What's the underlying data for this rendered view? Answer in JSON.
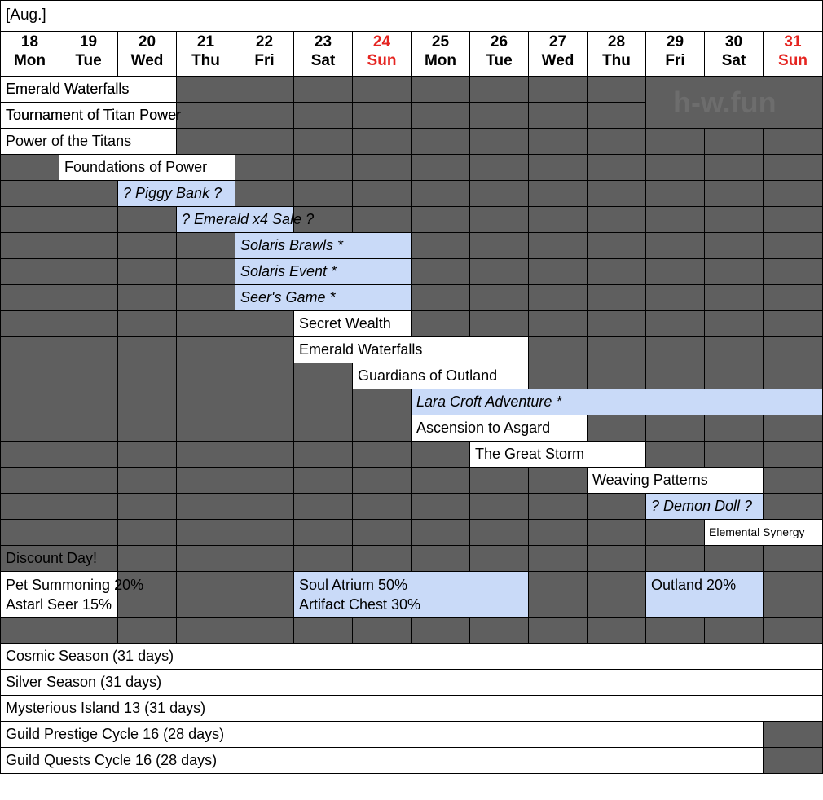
{
  "month_label": "[Aug.]",
  "watermark": "h-w.fun",
  "colors": {
    "off": "#5f5f5f",
    "grid": "#000000",
    "event": "#ffffff",
    "tentative": "#c9daf8",
    "sunday": "#e52521"
  },
  "days": [
    {
      "num": "18",
      "dow": "Mon",
      "sunday": false
    },
    {
      "num": "19",
      "dow": "Tue",
      "sunday": false
    },
    {
      "num": "20",
      "dow": "Wed",
      "sunday": false
    },
    {
      "num": "21",
      "dow": "Thu",
      "sunday": false
    },
    {
      "num": "22",
      "dow": "Fri",
      "sunday": false
    },
    {
      "num": "23",
      "dow": "Sat",
      "sunday": false
    },
    {
      "num": "24",
      "dow": "Sun",
      "sunday": true
    },
    {
      "num": "25",
      "dow": "Mon",
      "sunday": false
    },
    {
      "num": "26",
      "dow": "Tue",
      "sunday": false
    },
    {
      "num": "27",
      "dow": "Wed",
      "sunday": false
    },
    {
      "num": "28",
      "dow": "Thu",
      "sunday": false
    },
    {
      "num": "29",
      "dow": "Fri",
      "sunday": false
    },
    {
      "num": "30",
      "dow": "Sat",
      "sunday": false
    },
    {
      "num": "31",
      "dow": "Sun",
      "sunday": true
    }
  ],
  "events": [
    {
      "label": "Emerald Waterfalls",
      "row": 0,
      "start": 0,
      "end": 2,
      "style": "white"
    },
    {
      "label": "Tournament of Titan Power",
      "row": 1,
      "start": 0,
      "end": 2,
      "style": "white"
    },
    {
      "label": "Power of the Titans",
      "row": 2,
      "start": 0,
      "end": 2,
      "style": "white"
    },
    {
      "label": "Foundations of Power",
      "row": 3,
      "start": 1,
      "end": 3,
      "style": "white"
    },
    {
      "label": "? Piggy Bank ?",
      "row": 4,
      "start": 2,
      "end": 3,
      "style": "blue",
      "italic": true
    },
    {
      "label": "? Emerald x4 Sale ?",
      "row": 5,
      "start": 3,
      "end": 4,
      "style": "blue",
      "italic": true
    },
    {
      "label": "Solaris Brawls *",
      "row": 6,
      "start": 4,
      "end": 6,
      "style": "blue",
      "italic": true
    },
    {
      "label": "Solaris Event *",
      "row": 7,
      "start": 4,
      "end": 6,
      "style": "blue",
      "italic": true
    },
    {
      "label": "Seer's Game *",
      "row": 8,
      "start": 4,
      "end": 6,
      "style": "blue",
      "italic": true
    },
    {
      "label": "Secret Wealth",
      "row": 9,
      "start": 5,
      "end": 6,
      "style": "white"
    },
    {
      "label": "Emerald Waterfalls",
      "row": 10,
      "start": 5,
      "end": 8,
      "style": "white"
    },
    {
      "label": "Guardians of Outland",
      "row": 11,
      "start": 6,
      "end": 8,
      "style": "white"
    },
    {
      "label": "Lara Croft Adventure *",
      "row": 12,
      "start": 7,
      "end": 13,
      "style": "blue",
      "italic": true
    },
    {
      "label": "Ascension to Asgard",
      "row": 13,
      "start": 7,
      "end": 9,
      "style": "white"
    },
    {
      "label": "The Great Storm",
      "row": 14,
      "start": 8,
      "end": 10,
      "style": "white"
    },
    {
      "label": "Weaving Patterns",
      "row": 15,
      "start": 10,
      "end": 12,
      "style": "white"
    },
    {
      "label": "? Demon Doll ?",
      "row": 16,
      "start": 11,
      "end": 12,
      "style": "blue",
      "italic": true
    },
    {
      "label": "Elemental Synergy",
      "row": 17,
      "start": 12,
      "end": 13,
      "style": "white",
      "small": true
    }
  ],
  "overflow_labels": [
    {
      "label": "Emerald Waterfalls",
      "row": 0,
      "start": 0
    },
    {
      "label": "Tournament of Titan Power",
      "row": 1,
      "start": 0
    }
  ],
  "discount_day": "Discount Day!",
  "discounts": [
    {
      "lines": [
        "Pet Summoning 20%",
        "Astarl Seer 15%"
      ],
      "start": 0,
      "end": 1,
      "style": "white",
      "overflow": true
    },
    {
      "lines": [
        "Soul Atrium 50%",
        "Artifact Chest 30%"
      ],
      "start": 5,
      "end": 8,
      "style": "blue"
    },
    {
      "lines": [
        "Outland 20%"
      ],
      "start": 11,
      "end": 12,
      "style": "blue"
    }
  ],
  "seasons": [
    {
      "label": "Cosmic Season (31 days)",
      "full": true
    },
    {
      "label": "Silver Season (31 days)",
      "full": true
    },
    {
      "label": "Mysterious Island 13 (31 days)",
      "full": true
    },
    {
      "label": "Guild Prestige Cycle 16 (28 days)",
      "full": false
    },
    {
      "label": "Guild Quests Cycle 16 (28 days)",
      "full": false
    }
  ]
}
